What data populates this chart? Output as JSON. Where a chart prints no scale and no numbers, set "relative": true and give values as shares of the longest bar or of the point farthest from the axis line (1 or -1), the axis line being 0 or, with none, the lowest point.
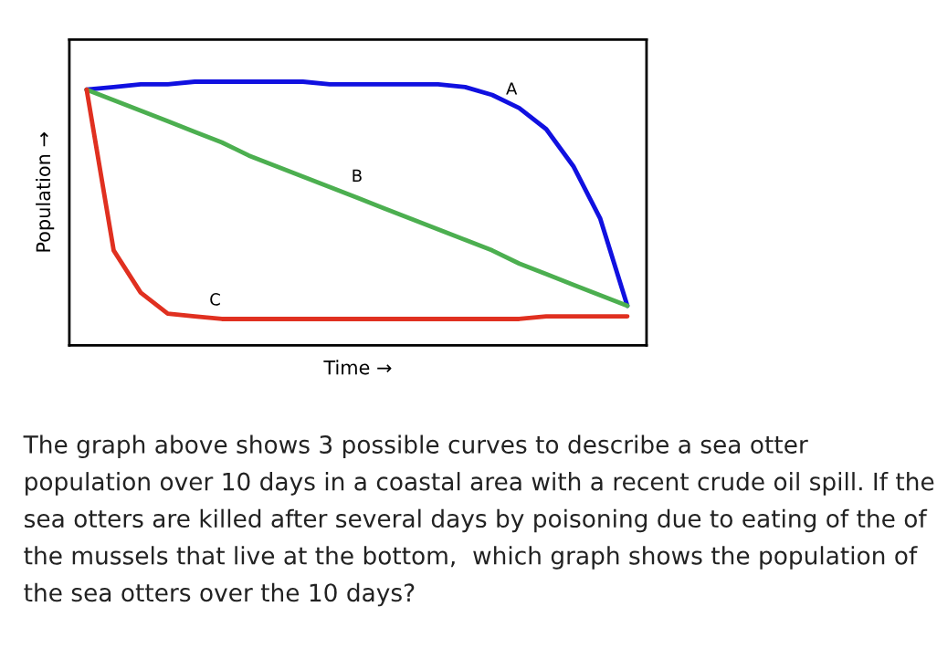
{
  "chart_data": {
    "type": "line",
    "relative": true,
    "xlabel": "Time →",
    "ylabel": "Population →",
    "categories": [
      null,
      null,
      null,
      null,
      null,
      null,
      null,
      null,
      null,
      null,
      null,
      null,
      null,
      null,
      null,
      null,
      null,
      null,
      null,
      null,
      null
    ],
    "series": [
      {
        "name": "A",
        "color": "#1010e0",
        "values": [
          0.97,
          0.98,
          0.99,
          0.99,
          1.0,
          1.0,
          1.0,
          1.0,
          1.0,
          0.99,
          0.99,
          0.99,
          0.99,
          0.99,
          0.98,
          0.95,
          0.9,
          0.82,
          0.68,
          0.48,
          0.15
        ]
      },
      {
        "name": "B",
        "color": "#4caf50",
        "values": [
          0.97,
          0.93,
          0.89,
          0.85,
          0.81,
          0.77,
          0.72,
          0.68,
          0.64,
          0.6,
          0.56,
          0.52,
          0.48,
          0.44,
          0.4,
          0.36,
          0.31,
          0.27,
          0.23,
          0.19,
          0.15
        ]
      },
      {
        "name": "C",
        "color": "#e03020",
        "values": [
          0.97,
          0.36,
          0.2,
          0.12,
          0.11,
          0.1,
          0.1,
          0.1,
          0.1,
          0.1,
          0.1,
          0.1,
          0.1,
          0.1,
          0.1,
          0.1,
          0.1,
          0.11,
          0.11,
          0.11,
          0.11
        ]
      }
    ],
    "grid": false,
    "legend": false,
    "annotations": [
      "The graph above shows 3 possible curves to describe a sea otter population over 10 days in a coastal area with a recent crude oil spill. If the sea otters are killed after several days by poisoning due to eating of the of the mussels that live at the bottom,  which graph shows the population of the sea otters over the 10 days?"
    ]
  }
}
